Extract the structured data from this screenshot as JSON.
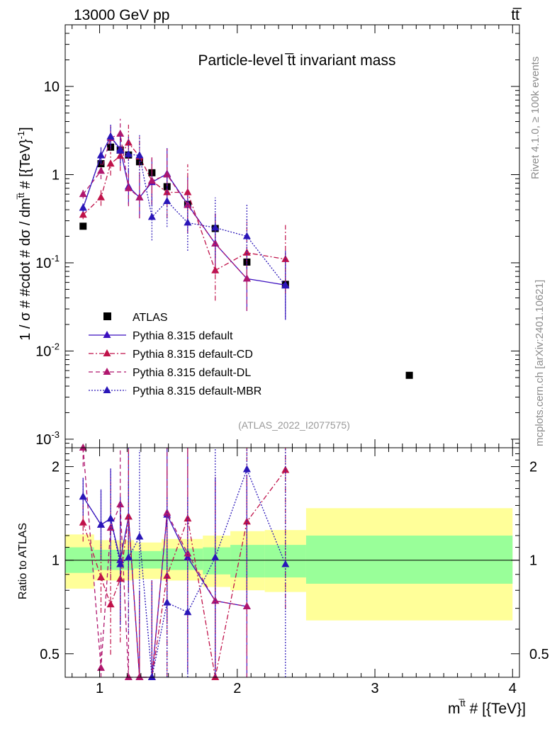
{
  "header": {
    "left": "13000 GeV pp",
    "right": "tt̅"
  },
  "side_labels": {
    "top": "Rivet 4.1.0, ≥ 100k events",
    "bottom": "mcplots.cern.ch [arXiv:2401.10621]"
  },
  "chart_data": [
    {
      "type": "line",
      "title": "Particle-level t̅t invariant mass",
      "watermark": "(ATLAS_2022_I2077575)",
      "ylabel": "1 / σ # #cdot # dσ / dm",
      "ylabel_sup": "t̅t",
      "ylabel_tail": " # [{TeV}",
      "ylabel_sup2": "-1",
      "ylabel_end": "]",
      "xlabel": "m",
      "xlabel_sup": "t̅t",
      "xlabel_tail": " # [{TeV}]",
      "yscale": "log",
      "ylim": [
        0.0008,
        50
      ],
      "xlim": [
        0.75,
        4.05
      ],
      "yticks": [
        {
          "v": 0.001,
          "base": "10",
          "exp": "-3"
        },
        {
          "v": 0.01,
          "base": "10",
          "exp": "-2"
        },
        {
          "v": 0.1,
          "base": "10",
          "exp": "-1"
        },
        {
          "v": 1,
          "label": "1"
        },
        {
          "v": 10,
          "label": "10"
        }
      ],
      "legend_position": "bottom-left",
      "series": [
        {
          "name": "ATLAS",
          "style": "marker",
          "marker": "square",
          "color": "#000000",
          "x": [
            0.88,
            1.01,
            1.08,
            1.15,
            1.21,
            1.29,
            1.38,
            1.49,
            1.64,
            1.84,
            2.07,
            2.35,
            3.25
          ],
          "y": [
            0.26,
            1.33,
            2.05,
            1.9,
            1.67,
            1.4,
            1.05,
            0.73,
            0.46,
            0.245,
            0.102,
            0.057,
            0.0053
          ]
        },
        {
          "name": "Pythia 8.315 default",
          "style": "solid",
          "marker": "triangle",
          "color": "#3b0fbf",
          "x": [
            0.88,
            1.01,
            1.08,
            1.15,
            1.21,
            1.29,
            1.38,
            1.49,
            1.64,
            1.84,
            2.07,
            2.35
          ],
          "y": [
            0.42,
            1.65,
            2.7,
            1.95,
            0.73,
            0.55,
            0.82,
            1.02,
            0.46,
            0.165,
            0.066,
            0.056
          ]
        },
        {
          "name": "Pythia 8.315 default-CD",
          "style": "dashdot",
          "marker": "triangle",
          "color": "#c0124a",
          "x": [
            0.88,
            1.01,
            1.08,
            1.15,
            1.21,
            1.29,
            1.38,
            1.49,
            1.64,
            1.84,
            2.07,
            2.35
          ],
          "y": [
            0.35,
            0.55,
            1.33,
            1.63,
            2.3,
            1.6,
            0.85,
            0.63,
            0.63,
            0.082,
            0.13,
            0.11
          ]
        },
        {
          "name": "Pythia 8.315 default-DL",
          "style": "dashed",
          "marker": "triangle",
          "color": "#b0166e",
          "x": [
            0.88,
            1.01,
            1.08,
            1.15,
            1.21,
            1.29,
            1.38,
            1.49,
            1.64,
            1.84,
            2.07
          ],
          "y": [
            0.6,
            1.1,
            2.6,
            2.9,
            0.7,
            0.55,
            0.85,
            1.0,
            0.45,
            0.165,
            0.066
          ]
        },
        {
          "name": "Pythia 8.315 default-MBR",
          "style": "dotted",
          "marker": "triangle",
          "color": "#2a16b8",
          "x": [
            0.88,
            1.01,
            1.08,
            1.15,
            1.21,
            1.29,
            1.38,
            1.49,
            1.64,
            1.84,
            2.07,
            2.35
          ],
          "y": [
            0.42,
            1.65,
            2.7,
            1.87,
            1.7,
            1.65,
            0.33,
            0.5,
            0.285,
            0.25,
            0.2,
            0.055
          ]
        }
      ]
    },
    {
      "type": "line",
      "ylabel": "Ratio to ATLAS",
      "yscale": "log",
      "ylim": [
        0.42,
        2.3
      ],
      "xlim": [
        0.75,
        4.05
      ],
      "yticks": [
        {
          "v": 0.5,
          "label": "0.5"
        },
        {
          "v": 1,
          "label": "1"
        },
        {
          "v": 2,
          "label": "2"
        }
      ],
      "xticks": [
        {
          "v": 1,
          "label": "1"
        },
        {
          "v": 2,
          "label": "2"
        },
        {
          "v": 3,
          "label": "3"
        },
        {
          "v": 4,
          "label": "4"
        }
      ],
      "uncertainty_bins": [
        {
          "x0": 0.75,
          "x1": 0.96,
          "g": [
            0.91,
            1.1
          ],
          "y": [
            0.81,
            1.21
          ]
        },
        {
          "x0": 0.96,
          "x1": 1.25,
          "g": [
            0.93,
            1.08
          ],
          "y": [
            0.86,
            1.16
          ]
        },
        {
          "x0": 1.25,
          "x1": 1.45,
          "g": [
            0.94,
            1.07
          ],
          "y": [
            0.87,
            1.14
          ]
        },
        {
          "x0": 1.45,
          "x1": 1.75,
          "g": [
            0.93,
            1.09
          ],
          "y": [
            0.86,
            1.17
          ]
        },
        {
          "x0": 1.75,
          "x1": 1.95,
          "g": [
            0.9,
            1.1
          ],
          "y": [
            0.82,
            1.2
          ]
        },
        {
          "x0": 1.95,
          "x1": 2.2,
          "g": [
            0.88,
            1.12
          ],
          "y": [
            0.8,
            1.24
          ]
        },
        {
          "x0": 2.2,
          "x1": 2.5,
          "g": [
            0.88,
            1.12
          ],
          "y": [
            0.79,
            1.25
          ]
        },
        {
          "x0": 2.5,
          "x1": 4.0,
          "g": [
            0.84,
            1.2
          ],
          "y": [
            0.64,
            1.47
          ]
        }
      ],
      "series": [
        {
          "name": "Pythia 8.315 default",
          "style": "solid",
          "color": "#3b0fbf",
          "x": [
            0.88,
            1.01,
            1.08,
            1.15,
            1.21,
            1.29,
            1.38,
            1.49,
            1.64,
            1.84,
            2.07
          ],
          "y": [
            1.6,
            1.3,
            1.36,
            1.0,
            1.38,
            0.42,
            0.42,
            1.4,
            1.02,
            0.74,
            0.71
          ]
        },
        {
          "name": "Pythia 8.315 default-CD",
          "style": "dashdot",
          "color": "#c0124a",
          "x": [
            0.88,
            1.01,
            1.08,
            1.15,
            1.21,
            1.29,
            1.38,
            1.49,
            1.64,
            1.84,
            2.07,
            2.35
          ],
          "y": [
            1.32,
            0.88,
            0.72,
            0.87,
            1.38,
            0.42,
            0.42,
            0.89,
            1.36,
            0.42,
            1.33,
            1.95
          ]
        },
        {
          "name": "Pythia 8.315 default-DL",
          "style": "dashed",
          "color": "#b0166e",
          "x": [
            0.88,
            1.01,
            1.08,
            1.15,
            1.21,
            1.29,
            1.38,
            1.49,
            1.64,
            1.84,
            2.07
          ],
          "y": [
            2.3,
            0.45,
            1.27,
            1.51,
            0.42,
            0.42,
            0.42,
            1.42,
            1.05,
            0.74,
            0.71
          ]
        },
        {
          "name": "Pythia 8.315 default-MBR",
          "style": "dotted",
          "color": "#2a16b8",
          "x": [
            0.88,
            1.01,
            1.08,
            1.15,
            1.21,
            1.29,
            1.38,
            1.49,
            1.64,
            1.84,
            2.07,
            2.35
          ],
          "y": [
            1.6,
            1.3,
            1.36,
            0.97,
            1.02,
            1.19,
            0.42,
            0.73,
            0.68,
            1.02,
            1.96,
            0.97
          ]
        }
      ]
    }
  ]
}
